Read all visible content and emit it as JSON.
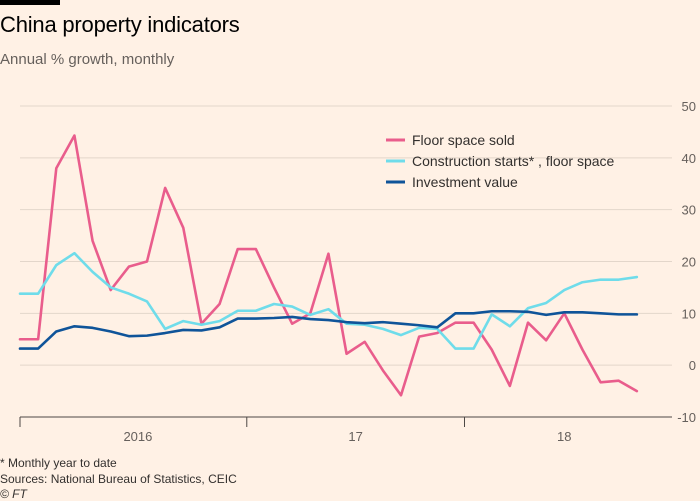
{
  "title": "China property indicators",
  "subtitle": "Annual % growth, monthly",
  "footnotes": {
    "note": "* Monthly year to date",
    "sources": "Sources: National Bureau of Statistics, CEIC",
    "copyright": "© FT"
  },
  "chart_data": {
    "type": "line",
    "x": [
      "2015-12",
      "2016-01",
      "2016-02",
      "2016-03",
      "2016-04",
      "2016-05",
      "2016-06",
      "2016-07",
      "2016-08",
      "2016-09",
      "2016-10",
      "2016-11",
      "2016-12",
      "2017-01",
      "2017-02",
      "2017-03",
      "2017-04",
      "2017-05",
      "2017-06",
      "2017-07",
      "2017-08",
      "2017-09",
      "2017-10",
      "2017-11",
      "2017-12",
      "2018-01",
      "2018-02",
      "2018-03",
      "2018-04",
      "2018-05",
      "2018-06",
      "2018-07",
      "2018-08",
      "2018-09",
      "2018-10",
      "2018-11"
    ],
    "x_tick_labels": [
      {
        "label": "2016",
        "start": "2016-01",
        "end": "2016-12"
      },
      {
        "label": "17",
        "start": "2017-01",
        "end": "2017-12"
      },
      {
        "label": "18",
        "start": "2018-01",
        "end": "2018-11"
      }
    ],
    "series": [
      {
        "name": "Floor space sold",
        "color": "#e95d8c",
        "values": [
          5.0,
          5.0,
          38.0,
          44.3,
          24.0,
          14.5,
          19.0,
          20.0,
          34.2,
          26.5,
          8.0,
          11.8,
          22.4,
          22.4,
          15.0,
          8.0,
          10.0,
          21.5,
          2.2,
          4.5,
          -1.0,
          -5.8,
          5.5,
          6.2,
          8.2,
          8.2,
          3.0,
          -4.0,
          8.2,
          4.8,
          10.0,
          3.0,
          -3.3,
          -3.0,
          -5.0,
          null
        ]
      },
      {
        "name": "Construction starts* , floor space",
        "color": "#6fdcea",
        "values": [
          13.8,
          13.8,
          19.3,
          21.6,
          18.0,
          15.0,
          13.8,
          12.3,
          7.0,
          8.5,
          7.8,
          8.5,
          10.5,
          10.5,
          11.8,
          11.3,
          9.7,
          10.8,
          8.0,
          7.8,
          7.0,
          5.8,
          7.2,
          7.0,
          3.2,
          3.2,
          9.8,
          7.5,
          11.0,
          12.0,
          14.5,
          16.0,
          16.5,
          16.5,
          17.0,
          null
        ]
      },
      {
        "name": "Investment value",
        "color": "#0f5499",
        "values": [
          3.2,
          3.2,
          6.5,
          7.5,
          7.2,
          6.5,
          5.6,
          5.7,
          6.2,
          6.8,
          6.7,
          7.3,
          9.0,
          9.0,
          9.1,
          9.3,
          8.9,
          8.7,
          8.3,
          8.1,
          8.3,
          8.0,
          7.7,
          7.3,
          10.0,
          10.0,
          10.4,
          10.4,
          10.3,
          9.7,
          10.2,
          10.2,
          10.0,
          9.8,
          9.8,
          null
        ]
      }
    ],
    "y_ticks": [
      50,
      40,
      30,
      20,
      10,
      0,
      -10
    ],
    "ylim": [
      -10,
      50
    ],
    "grid": true,
    "legend_position": "top-right"
  }
}
